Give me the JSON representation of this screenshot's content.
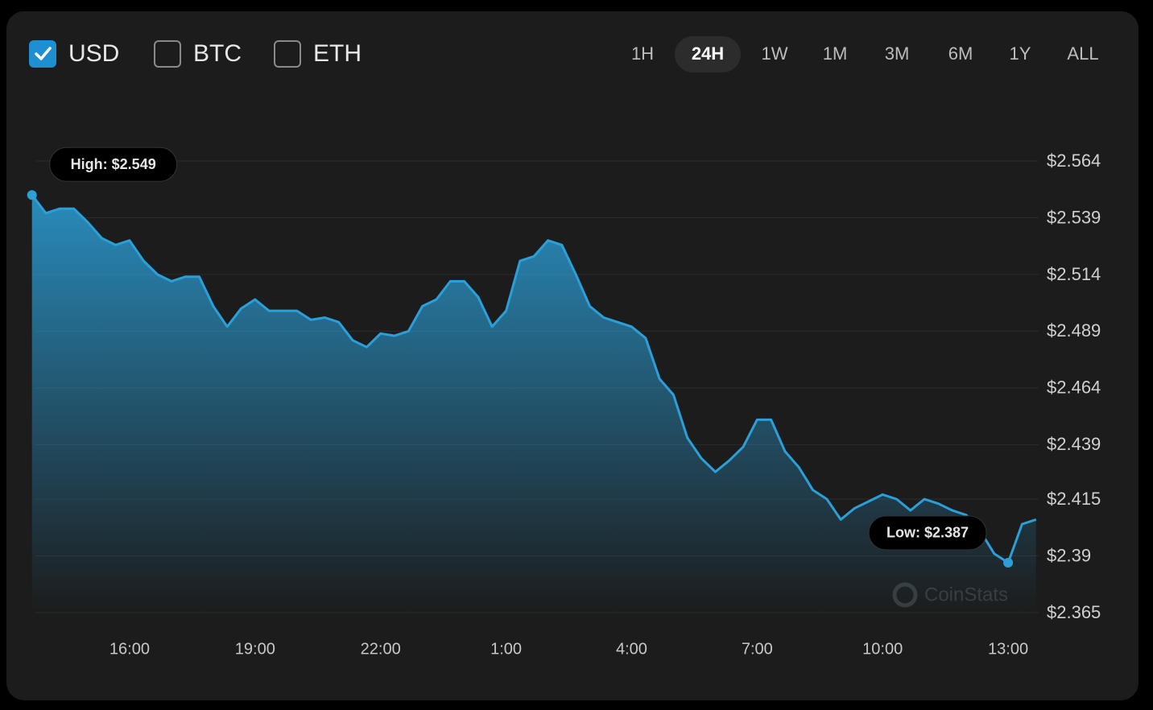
{
  "currencies": [
    {
      "label": "USD",
      "checked": true
    },
    {
      "label": "BTC",
      "checked": false
    },
    {
      "label": "ETH",
      "checked": false
    }
  ],
  "ranges": {
    "options": [
      "1H",
      "24H",
      "1W",
      "1M",
      "3M",
      "6M",
      "1Y",
      "ALL"
    ],
    "selected": "24H"
  },
  "watermark": "CoinStats",
  "chart_data": {
    "type": "area",
    "x": [
      "13:40",
      "14:00",
      "14:20",
      "14:40",
      "15:00",
      "15:20",
      "15:40",
      "16:00",
      "16:20",
      "16:40",
      "17:00",
      "17:20",
      "17:40",
      "18:00",
      "18:20",
      "18:40",
      "19:00",
      "19:20",
      "19:40",
      "20:00",
      "20:20",
      "20:40",
      "21:00",
      "21:20",
      "21:40",
      "22:00",
      "22:20",
      "22:40",
      "23:00",
      "23:20",
      "23:40",
      "0:00",
      "0:20",
      "0:40",
      "1:00",
      "1:20",
      "1:40",
      "2:00",
      "2:20",
      "2:40",
      "3:00",
      "3:20",
      "3:40",
      "4:00",
      "4:20",
      "4:40",
      "5:00",
      "5:20",
      "5:40",
      "6:00",
      "6:20",
      "6:40",
      "7:00",
      "7:20",
      "7:40",
      "8:00",
      "8:20",
      "8:40",
      "9:00",
      "9:20",
      "9:40",
      "10:00",
      "10:20",
      "10:40",
      "11:00",
      "11:20",
      "11:40",
      "12:00",
      "12:20",
      "12:40",
      "13:00",
      "13:20",
      "13:40"
    ],
    "series": [
      {
        "name": "USD",
        "color": "#2b9fd8",
        "values": [
          2.549,
          2.541,
          2.543,
          2.543,
          2.537,
          2.53,
          2.527,
          2.529,
          2.52,
          2.514,
          2.511,
          2.513,
          2.513,
          2.5,
          2.491,
          2.499,
          2.503,
          2.498,
          2.498,
          2.498,
          2.494,
          2.495,
          2.493,
          2.485,
          2.482,
          2.488,
          2.487,
          2.489,
          2.5,
          2.503,
          2.511,
          2.511,
          2.504,
          2.491,
          2.498,
          2.52,
          2.522,
          2.529,
          2.527,
          2.514,
          2.5,
          2.495,
          2.493,
          2.491,
          2.486,
          2.468,
          2.461,
          2.442,
          2.433,
          2.427,
          2.432,
          2.438,
          2.45,
          2.45,
          2.436,
          2.429,
          2.419,
          2.415,
          2.406,
          2.411,
          2.414,
          2.417,
          2.415,
          2.41,
          2.415,
          2.413,
          2.41,
          2.408,
          2.401,
          2.391,
          2.387,
          2.404,
          2.406
        ]
      }
    ],
    "xticks": [
      "16:00",
      "19:00",
      "22:00",
      "1:00",
      "4:00",
      "7:00",
      "10:00",
      "13:00"
    ],
    "ylim": [
      2.365,
      2.564
    ],
    "yticks": [
      {
        "value": 2.564,
        "label": "$2.564"
      },
      {
        "value": 2.539,
        "label": "$2.539"
      },
      {
        "value": 2.514,
        "label": "$2.514"
      },
      {
        "value": 2.489,
        "label": "$2.489"
      },
      {
        "value": 2.464,
        "label": "$2.464"
      },
      {
        "value": 2.439,
        "label": "$2.439"
      },
      {
        "value": 2.415,
        "label": "$2.415"
      },
      {
        "value": 2.39,
        "label": "$2.39"
      },
      {
        "value": 2.365,
        "label": "$2.365"
      }
    ],
    "grid": true,
    "annotations": {
      "high": "High: $2.549",
      "low": "Low: $2.387"
    }
  }
}
